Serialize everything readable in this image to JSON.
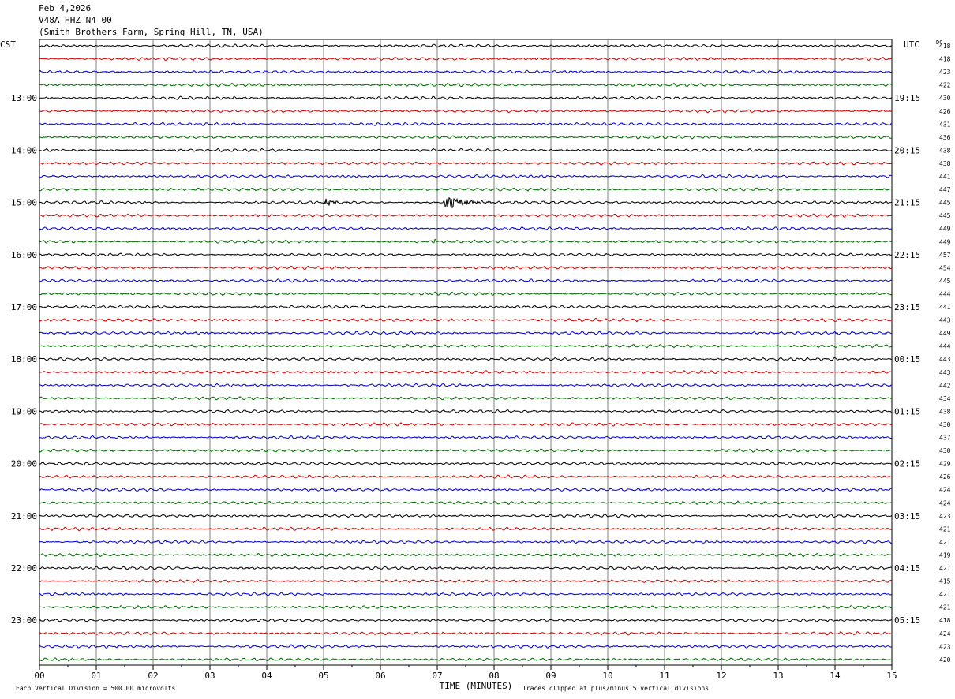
{
  "header": {
    "date": "Feb 4,2026",
    "station": "V48A HHZ N4 00",
    "location": "(Smith Brothers Farm, Spring Hill, TN, USA)"
  },
  "chart_data": {
    "type": "line",
    "title": "V48A HHZ N4 00",
    "left_axis_label": "CST",
    "right_axis_label": "UTC",
    "dc_label": "DC",
    "xlabel": "TIME (MINUTES)",
    "xlim": [
      0,
      15
    ],
    "x_tick_labels": [
      "00",
      "01",
      "02",
      "03",
      "04",
      "05",
      "06",
      "07",
      "08",
      "09",
      "10",
      "11",
      "12",
      "13",
      "14",
      "15"
    ],
    "hour_labels_left": [
      "13:00",
      "14:00",
      "15:00",
      "16:00",
      "17:00",
      "18:00",
      "19:00",
      "20:00",
      "21:00",
      "22:00",
      "23:00"
    ],
    "hour_labels_right": [
      "19:15",
      "20:15",
      "21:15",
      "22:15",
      "23:15",
      "00:15",
      "01:15",
      "02:15",
      "03:15",
      "04:15",
      "05:15"
    ],
    "trace_count": 48,
    "trace_colors": [
      "#000000",
      "#cc0000",
      "#0000cc",
      "#006600"
    ],
    "dc_values": [
      "418",
      "418",
      "423",
      "422",
      "430",
      "426",
      "431",
      "436",
      "438",
      "438",
      "441",
      "447",
      "445",
      "445",
      "449",
      "449",
      "457",
      "454",
      "445",
      "444",
      "441",
      "443",
      "449",
      "444",
      "443",
      "443",
      "442",
      "434",
      "438",
      "430",
      "437",
      "430",
      "429",
      "426",
      "424",
      "424",
      "423",
      "421",
      "421",
      "419",
      "421",
      "415",
      "421",
      "421",
      "418",
      "424",
      "423",
      "420"
    ],
    "events": [
      {
        "trace": 12,
        "start_min": 5.0,
        "end_min": 5.6,
        "amplitude": "moderate"
      },
      {
        "trace": 12,
        "start_min": 7.1,
        "end_min": 8.0,
        "amplitude": "large"
      },
      {
        "trace": 15,
        "start_min": 6.95,
        "end_min": 7.05,
        "amplitude": "moderate"
      },
      {
        "trace": 22,
        "start_min": 14.0,
        "end_min": 14.1,
        "amplitude": "small"
      }
    ],
    "footer_left": "Each Vertical Division =  500.00 microvolts",
    "footer_right": "Traces clipped at plus/minus 5 vertical divisions"
  }
}
